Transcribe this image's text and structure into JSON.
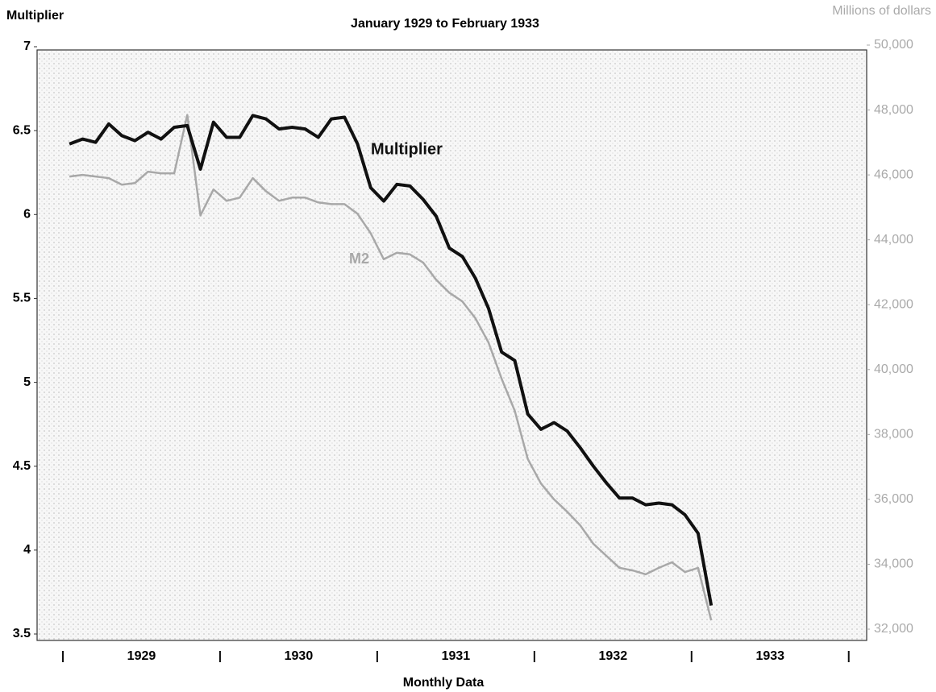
{
  "chart_data": {
    "type": "line",
    "title": "January 1929 to February 1933",
    "y_label": "Multiplier",
    "y2_label": "Millions of dollars",
    "x_label": "Monthly Data",
    "xlim": [
      -2.47,
      60.87
    ],
    "xticks": [
      -0.5,
      11.5,
      23.5,
      35.5,
      47.5,
      59.5
    ],
    "year_labels": [
      {
        "value": 5.5,
        "label": "1929"
      },
      {
        "value": 17.5,
        "label": "1930"
      },
      {
        "value": 29.5,
        "label": "1931"
      },
      {
        "value": 41.5,
        "label": "1932"
      },
      {
        "value": 53.5,
        "label": "1933"
      }
    ],
    "ylim": [
      3.5,
      7
    ],
    "yticks": [
      3.5,
      4,
      4.5,
      5,
      5.5,
      6,
      6.5,
      7
    ],
    "y2lim": [
      32000,
      50000
    ],
    "y2ticks": [
      {
        "value": 32000,
        "label": "32,000"
      },
      {
        "value": 34000,
        "label": "34,000"
      },
      {
        "value": 36000,
        "label": "36,000"
      },
      {
        "value": 38000,
        "label": "38,000"
      },
      {
        "value": 40000,
        "label": "40,000"
      },
      {
        "value": 42000,
        "label": "42,000"
      },
      {
        "value": 44000,
        "label": "44,000"
      },
      {
        "value": 46000,
        "label": "46,000"
      },
      {
        "value": 48000,
        "label": "48,000"
      },
      {
        "value": 50000,
        "label": "50,000"
      }
    ],
    "series": [
      {
        "name": "Multiplier",
        "color": "#111111",
        "width": 4,
        "values": [
          6.42,
          6.45,
          6.43,
          6.54,
          6.47,
          6.44,
          6.49,
          6.45,
          6.52,
          6.53,
          6.27,
          6.55,
          6.46,
          6.46,
          6.59,
          6.57,
          6.51,
          6.52,
          6.51,
          6.46,
          6.57,
          6.58,
          6.42,
          6.16,
          6.08,
          6.18,
          6.17,
          6.09,
          5.99,
          5.8,
          5.75,
          5.62,
          5.44,
          5.18,
          5.13,
          4.81,
          4.72,
          4.76,
          4.71,
          4.61,
          4.5,
          4.4,
          4.31,
          4.31,
          4.27,
          4.28,
          4.27,
          4.21,
          4.1,
          3.67
        ]
      },
      {
        "name": "M2",
        "color": "#a8a8a8",
        "width": 2.5,
        "axis": "y2",
        "values": [
          45950,
          46000,
          45950,
          45900,
          45700,
          45750,
          46100,
          46050,
          46050,
          47850,
          44750,
          45550,
          45200,
          45300,
          45900,
          45500,
          45200,
          45300,
          45300,
          45150,
          45100,
          45100,
          44800,
          44200,
          43400,
          43600,
          43550,
          43300,
          42770,
          42370,
          42100,
          41580,
          40830,
          39720,
          38730,
          37240,
          36490,
          36000,
          35620,
          35200,
          34630,
          34260,
          33890,
          33810,
          33690,
          33890,
          34060,
          33760,
          33890,
          32270
        ]
      }
    ]
  }
}
